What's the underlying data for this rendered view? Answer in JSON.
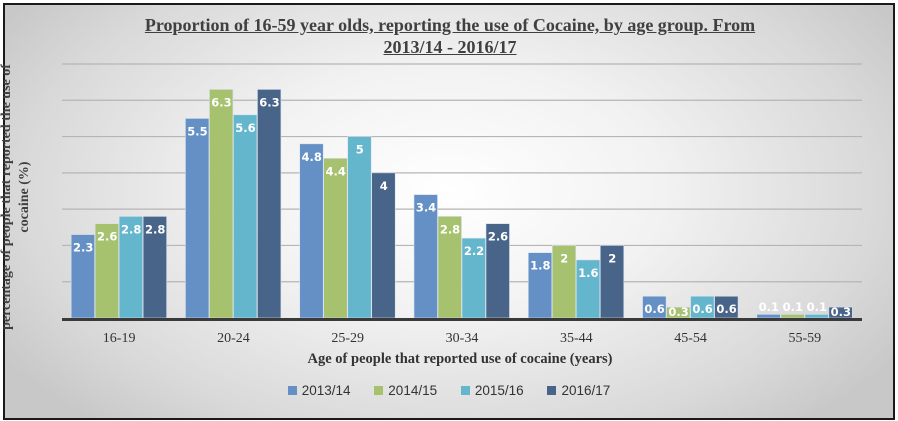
{
  "chart_data": {
    "type": "bar",
    "title": "Proportion of 16-59 year olds, reporting the use of Cocaine, by age group. From 2013/14 - 2016/17",
    "title_lines": [
      "Proportion of 16-59 year olds, reporting the use of Cocaine, by age group. From",
      "2013/14 - 2016/17"
    ],
    "xlabel": "Age of people that reported use of cocaine (years)",
    "ylabel": "percentage of people that reported the use of cocaine (%)",
    "ylabel_lines": [
      "percentage of people that reported the use of",
      "cocaine (%)"
    ],
    "categories": [
      "16-19",
      "20-24",
      "25-29",
      "30-34",
      "35-44",
      "45-54",
      "55-59"
    ],
    "series": [
      {
        "name": "2013/14",
        "color": "#6590C6",
        "values": [
          2.3,
          5.5,
          4.8,
          3.4,
          1.8,
          0.6,
          0.1
        ]
      },
      {
        "name": "2014/15",
        "color": "#A6C26E",
        "values": [
          2.6,
          6.3,
          4.4,
          2.8,
          2,
          0.3,
          0.1
        ]
      },
      {
        "name": "2015/16",
        "color": "#63B6CC",
        "values": [
          2.8,
          5.6,
          5,
          2.2,
          1.6,
          0.6,
          0.1
        ]
      },
      {
        "name": "2016/17",
        "color": "#486489",
        "values": [
          2.8,
          6.3,
          4,
          2.6,
          2,
          0.6,
          0.3
        ]
      }
    ],
    "ylim": [
      0,
      7
    ],
    "y_tick_labels_shown": false,
    "grid": true,
    "data_labels": true,
    "legend": "bottom"
  }
}
